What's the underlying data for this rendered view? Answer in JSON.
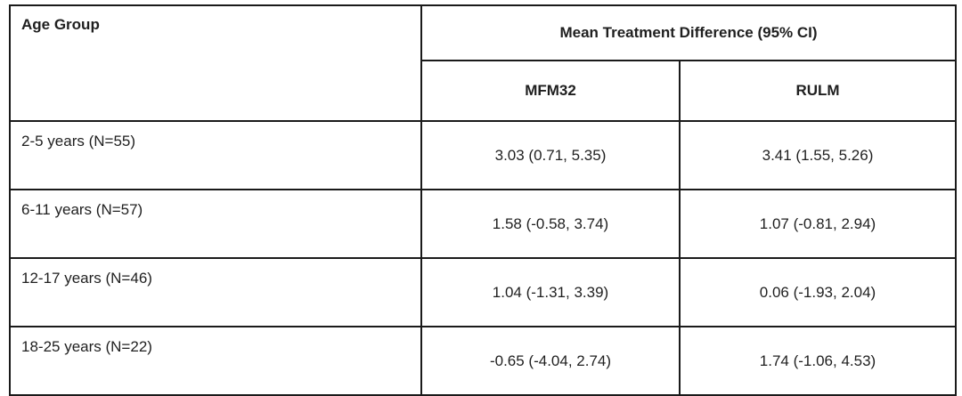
{
  "table": {
    "header": {
      "age_group": "Age Group",
      "span": "Mean Treatment Difference (95% CI)",
      "mfm32": "MFM32",
      "rulm": "RULM"
    },
    "rows": [
      {
        "age_group": "2-5 years (N=55)",
        "mfm32": "3.03 (0.71, 5.35)",
        "rulm": "3.41 (1.55, 5.26)"
      },
      {
        "age_group": "6-11 years (N=57)",
        "mfm32": "1.58 (-0.58, 3.74)",
        "rulm": "1.07 (-0.81, 2.94)"
      },
      {
        "age_group": "12-17 years (N=46)",
        "mfm32": "1.04 (-1.31, 3.39)",
        "rulm": "0.06 (-1.93, 2.04)"
      },
      {
        "age_group": "18-25 years (N=22)",
        "mfm32": "-0.65 (-4.04, 2.74)",
        "rulm": "1.74 (-1.06, 4.53)"
      }
    ]
  },
  "colors": {
    "border": "#1a1a1a",
    "text": "#1f1f1f",
    "background": "#ffffff"
  },
  "chart_data": {
    "type": "table",
    "title": "Mean Treatment Difference (95% CI) by Age Group",
    "columns": [
      "Age Group",
      "MFM32",
      "RULM"
    ],
    "rows": [
      [
        "2-5 years (N=55)",
        "3.03 (0.71, 5.35)",
        "3.41 (1.55, 5.26)"
      ],
      [
        "6-11 years (N=57)",
        "1.58 (-0.58, 3.74)",
        "1.07 (-0.81, 2.94)"
      ],
      [
        "12-17 years (N=46)",
        "1.04 (-1.31, 3.39)",
        "0.06 (-1.93, 2.04)"
      ],
      [
        "18-25 years (N=22)",
        "-0.65 (-4.04, 2.74)",
        "1.74 (-1.06, 4.53)"
      ]
    ],
    "series": [
      {
        "name": "MFM32",
        "categories": [
          "2-5 years",
          "6-11 years",
          "12-17 years",
          "18-25 years"
        ],
        "mean": [
          3.03,
          1.58,
          1.04,
          -0.65
        ],
        "ci_low": [
          0.71,
          -0.58,
          -1.31,
          -4.04
        ],
        "ci_high": [
          5.35,
          3.74,
          3.39,
          2.74
        ]
      },
      {
        "name": "RULM",
        "categories": [
          "2-5 years",
          "6-11 years",
          "12-17 years",
          "18-25 years"
        ],
        "mean": [
          3.41,
          1.07,
          0.06,
          1.74
        ],
        "ci_low": [
          1.55,
          -0.81,
          -1.93,
          -1.06
        ],
        "ci_high": [
          5.26,
          2.94,
          2.04,
          4.53
        ]
      }
    ],
    "n_per_group": {
      "2-5 years": 55,
      "6-11 years": 57,
      "12-17 years": 46,
      "18-25 years": 22
    }
  }
}
